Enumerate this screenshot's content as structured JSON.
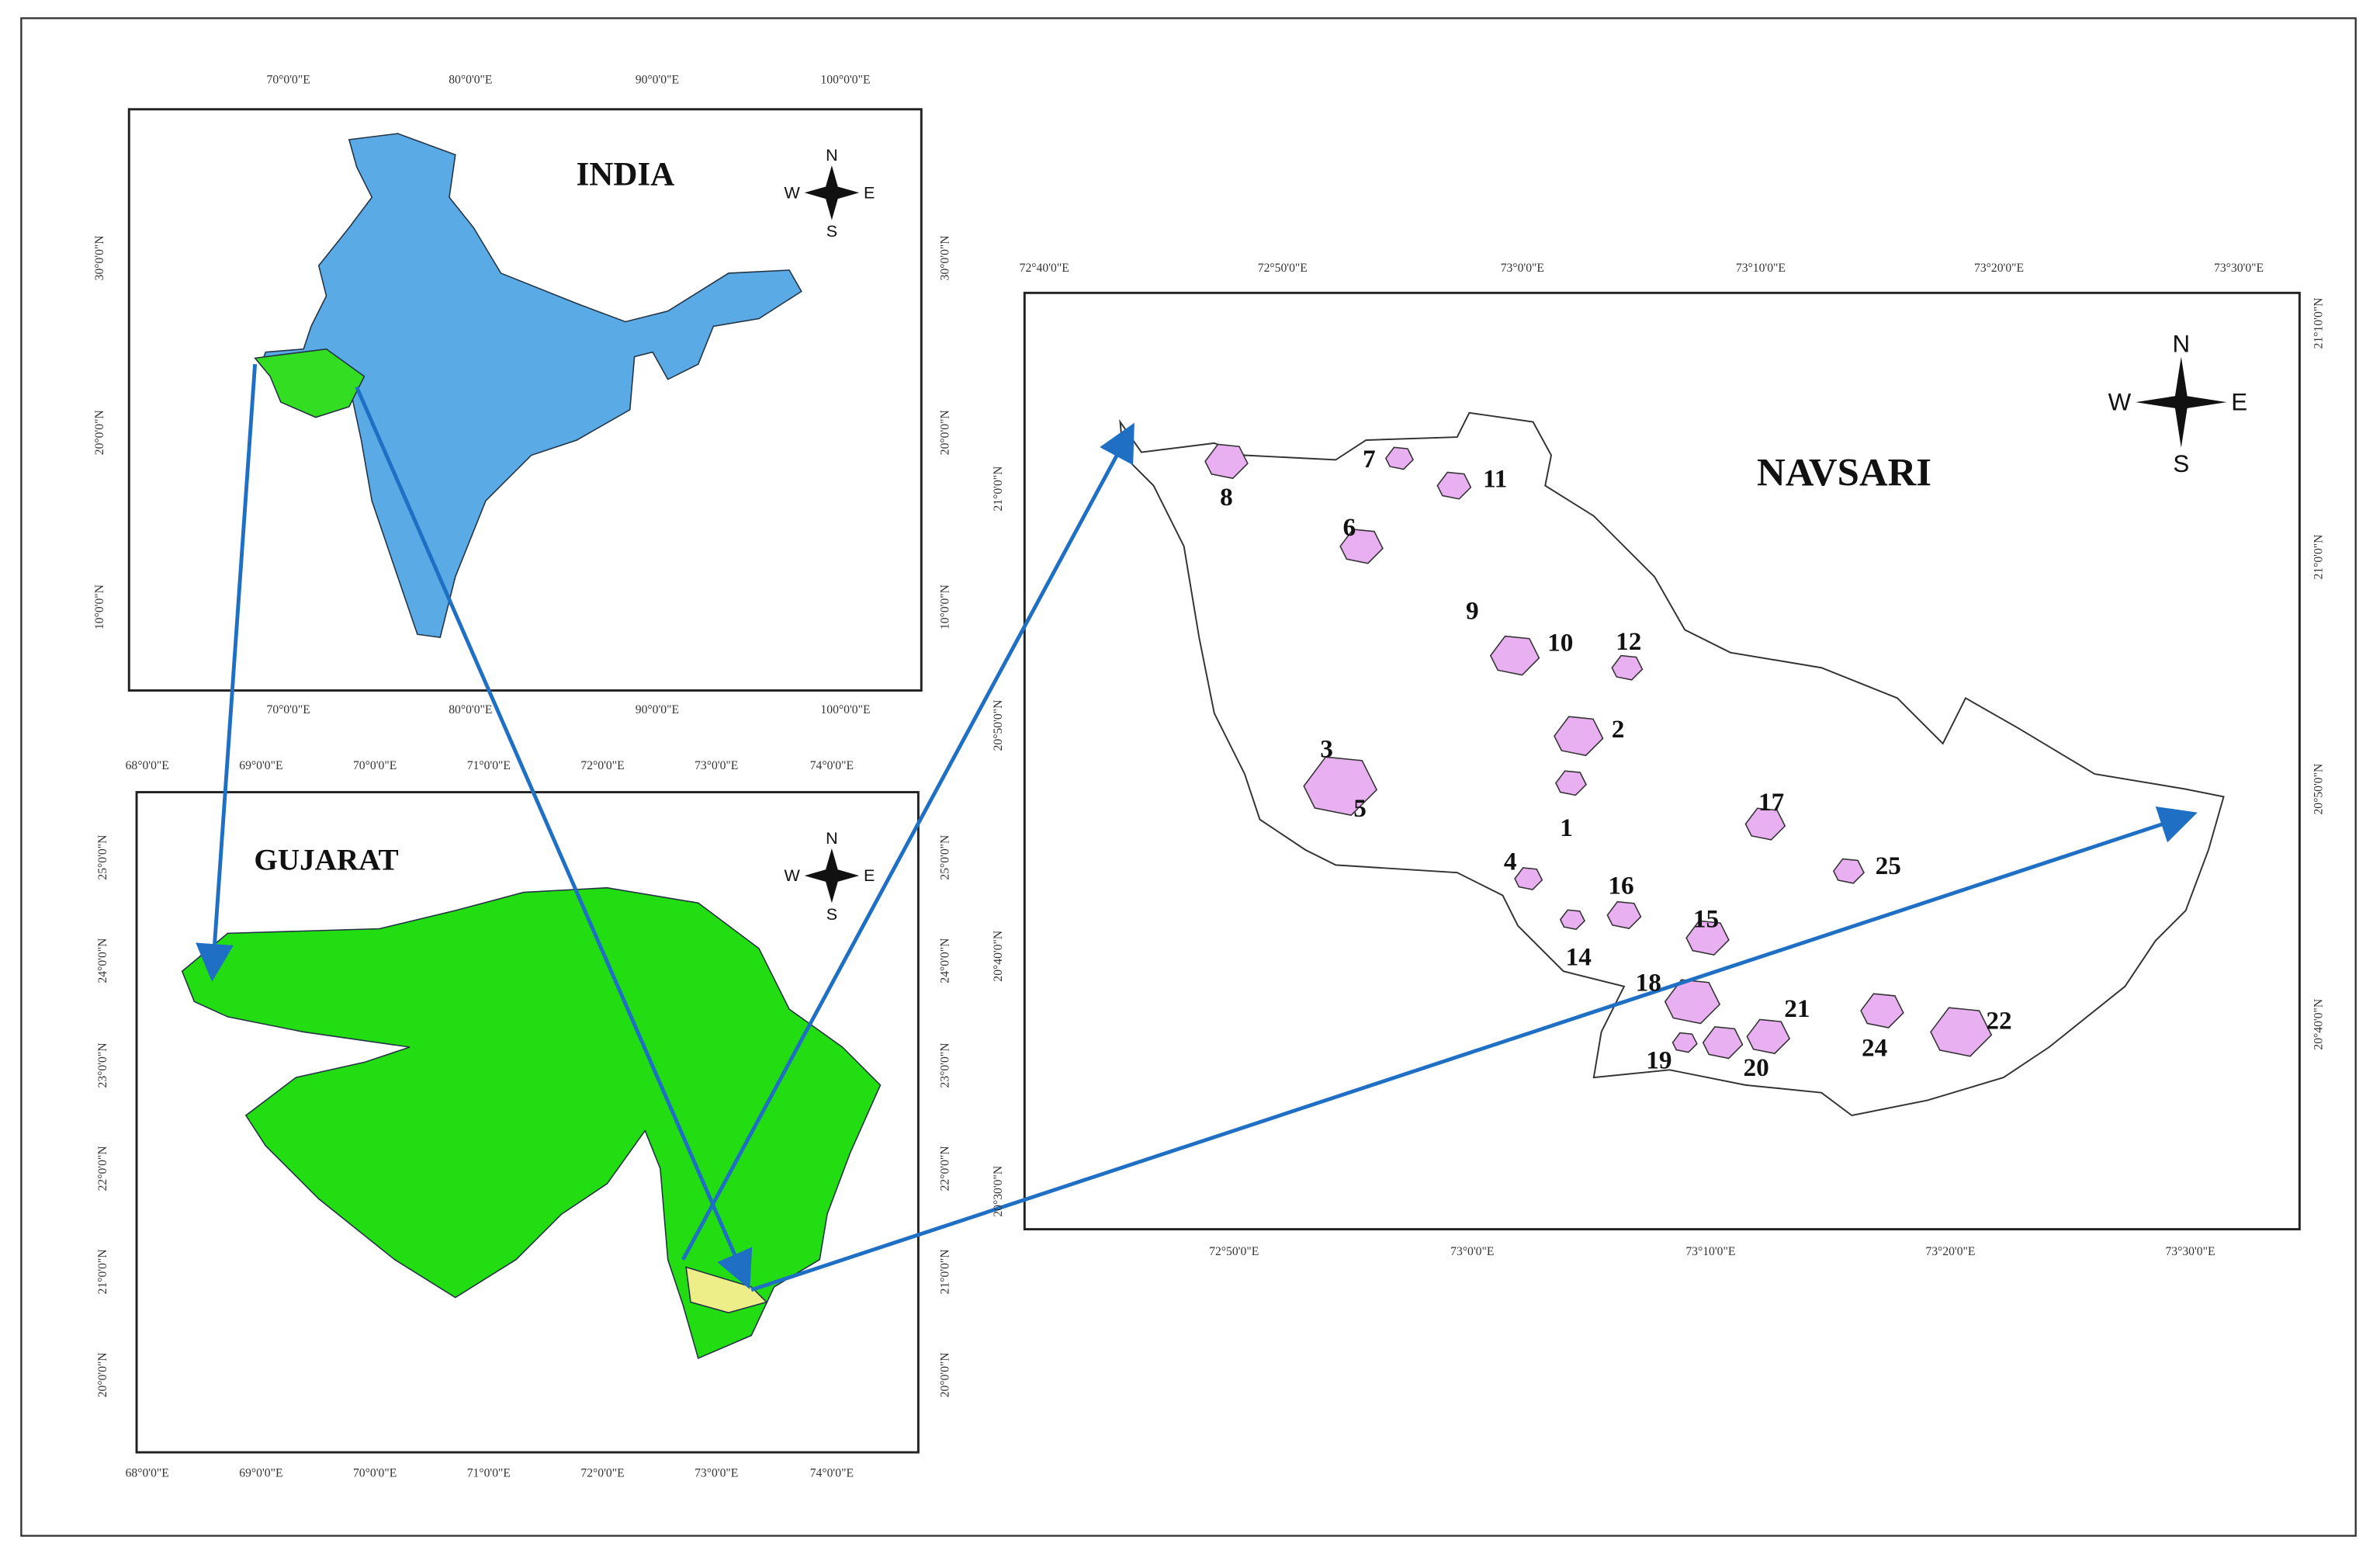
{
  "panels": [
    {
      "title": "INDIA",
      "compass": {
        "n": "N",
        "w": "W",
        "e": "E",
        "s": "S"
      },
      "top": [
        "70°0'0\"E",
        "80°0'0\"E",
        "90°0'0\"E",
        "100°0'0\"E"
      ],
      "bottom": [
        "70°0'0\"E",
        "80°0'0\"E",
        "90°0'0\"E",
        "100°0'0\"E"
      ],
      "left": [
        "30°0'0\"N",
        "20°0'0\"N",
        "10°0'0\"N"
      ],
      "right": [
        "30°0'0\"N",
        "20°0'0\"N",
        "10°0'0\"N"
      ]
    },
    {
      "title": "GUJARAT",
      "compass": {
        "n": "N",
        "w": "W",
        "e": "E",
        "s": "S"
      },
      "top": [
        "68°0'0\"E",
        "69°0'0\"E",
        "70°0'0\"E",
        "71°0'0\"E",
        "72°0'0\"E",
        "73°0'0\"E",
        "74°0'0\"E"
      ],
      "bottom": [
        "68°0'0\"E",
        "69°0'0\"E",
        "70°0'0\"E",
        "71°0'0\"E",
        "72°0'0\"E",
        "73°0'0\"E",
        "74°0'0\"E"
      ],
      "left": [
        "25°0'0\"N",
        "24°0'0\"N",
        "23°0'0\"N",
        "22°0'0\"N",
        "21°0'0\"N",
        "20°0'0\"N"
      ],
      "right": [
        "25°0'0\"N",
        "24°0'0\"N",
        "23°0'0\"N",
        "22°0'0\"N",
        "21°0'0\"N",
        "20°0'0\"N"
      ]
    },
    {
      "title": "NAVSARI",
      "compass": {
        "n": "N",
        "w": "W",
        "e": "E",
        "s": "S"
      },
      "top": [
        "72°40'0\"E",
        "72°50'0\"E",
        "73°0'0\"E",
        "73°10'0\"E",
        "73°20'0\"E",
        "73°30'0\"E"
      ],
      "bottom": [
        "72°50'0\"E",
        "73°0'0\"E",
        "73°10'0\"E",
        "73°20'0\"E",
        "73°30'0\"E"
      ],
      "left": [
        "21°0'0\"N",
        "20°50'0\"N",
        "20°40'0\"N",
        "20°30'0\"N"
      ],
      "right": [
        "21°10'0\"N",
        "21°0'0\"N",
        "20°50'0\"N",
        "20°40'0\"N"
      ],
      "sites": [
        "8",
        "7",
        "11",
        "6",
        "9",
        "10",
        "12",
        "2",
        "3",
        "5",
        "1",
        "17",
        "25",
        "4",
        "16",
        "15",
        "14",
        "18",
        "21",
        "24",
        "22",
        "19",
        "20"
      ]
    }
  ]
}
